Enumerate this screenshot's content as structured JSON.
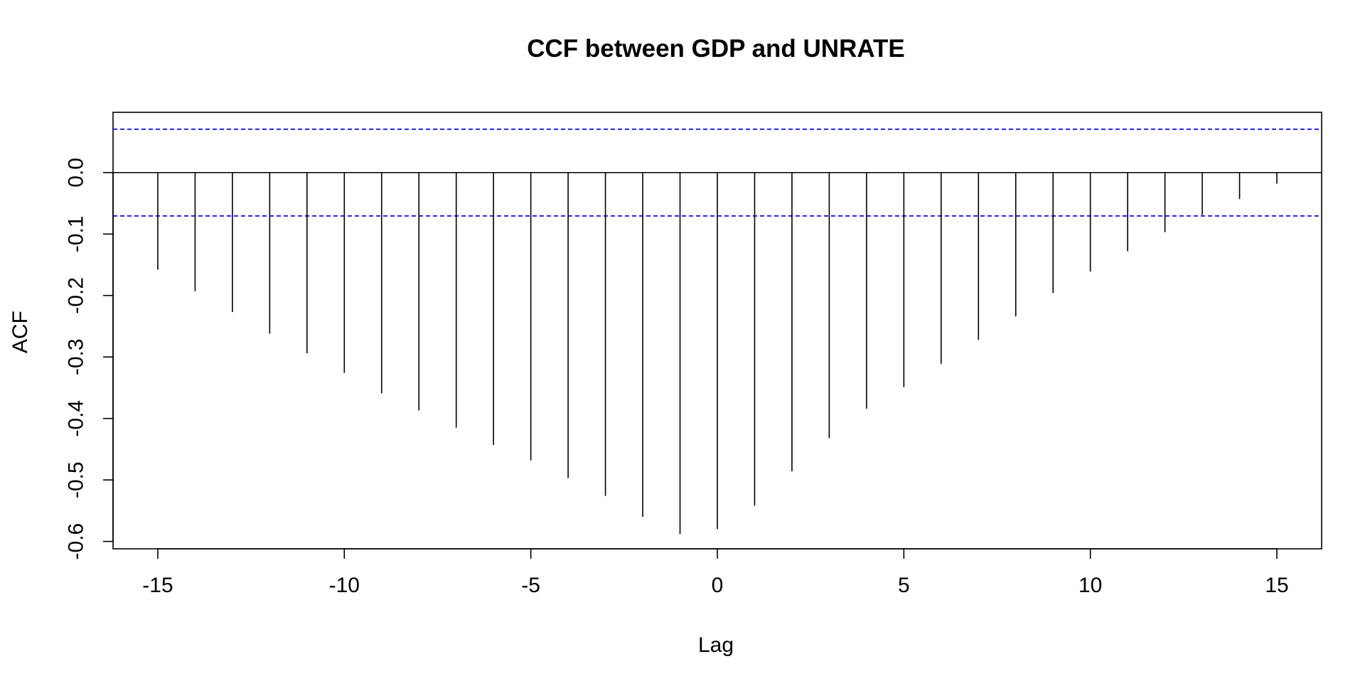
{
  "chart_data": {
    "type": "bar",
    "title": "CCF between GDP and UNRATE",
    "xlabel": "Lag",
    "ylabel": "ACF",
    "x": [
      -15,
      -14,
      -13,
      -12,
      -11,
      -10,
      -9,
      -8,
      -7,
      -6,
      -5,
      -4,
      -3,
      -2,
      -1,
      0,
      1,
      2,
      3,
      4,
      5,
      6,
      7,
      8,
      9,
      10,
      11,
      12,
      13,
      14,
      15
    ],
    "values": [
      -0.158,
      -0.193,
      -0.227,
      -0.262,
      -0.294,
      -0.326,
      -0.359,
      -0.387,
      -0.415,
      -0.443,
      -0.468,
      -0.497,
      -0.526,
      -0.56,
      -0.588,
      -0.58,
      -0.542,
      -0.486,
      -0.432,
      -0.384,
      -0.349,
      -0.311,
      -0.272,
      -0.234,
      -0.196,
      -0.161,
      -0.128,
      -0.097,
      -0.069,
      -0.043,
      -0.018
    ],
    "xlim": [
      -16.2,
      16.2
    ],
    "ylim": [
      -0.612,
      0.098
    ],
    "xticks": [
      -15,
      -10,
      -5,
      0,
      5,
      10,
      15
    ],
    "yticks": [
      0.0,
      -0.1,
      -0.2,
      -0.3,
      -0.4,
      -0.5,
      -0.6
    ],
    "yticklabels": [
      "0.0",
      "-0.1",
      "-0.2",
      "-0.3",
      "-0.4",
      "-0.5",
      "-0.6"
    ],
    "zero_line": 0,
    "confidence_bounds": [
      0.0705,
      -0.0705
    ],
    "bar_color": "#000000",
    "bound_color": "#0000ff",
    "grid": false,
    "legend": "none"
  }
}
